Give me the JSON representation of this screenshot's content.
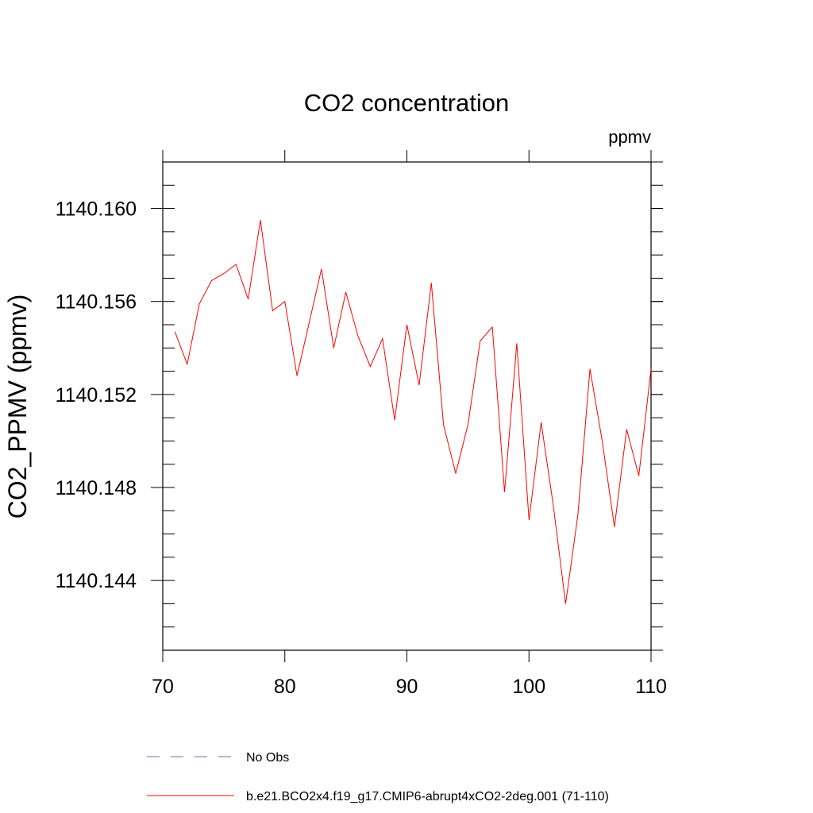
{
  "chart_data": {
    "type": "line",
    "title": "CO2 concentration",
    "units_label": "ppmv",
    "xlabel": "",
    "ylabel": "CO2_PPMV  (ppmv)",
    "xlim": [
      70,
      110
    ],
    "ylim": [
      1140.141,
      1140.162
    ],
    "x_ticks": [
      70,
      80,
      90,
      100,
      110
    ],
    "x_tick_labels": [
      "70",
      "80",
      "90",
      "100",
      "110"
    ],
    "y_ticks": [
      1140.144,
      1140.148,
      1140.152,
      1140.156,
      1140.16
    ],
    "y_tick_labels": [
      "1140.144",
      "1140.148",
      "1140.152",
      "1140.156",
      "1140.160"
    ],
    "legend": [
      {
        "label": "No Obs",
        "color": "#6a6ab8",
        "style": "dashed"
      },
      {
        "label": "b.e21.BCO2x4.f19_g17.CMIP6-abrupt4xCO2-2deg.001 (71-110)",
        "color": "#ff0000",
        "style": "solid"
      }
    ],
    "series": [
      {
        "name": "b.e21.BCO2x4.f19_g17.CMIP6-abrupt4xCO2-2deg.001 (71-110)",
        "color": "#ff0000",
        "x": [
          71,
          72,
          73,
          74,
          75,
          76,
          77,
          78,
          79,
          80,
          81,
          82,
          83,
          84,
          85,
          86,
          87,
          88,
          89,
          90,
          91,
          92,
          93,
          94,
          95,
          96,
          97,
          98,
          99,
          100,
          101,
          102,
          103,
          104,
          105,
          106,
          107,
          108,
          109,
          110
        ],
        "values": [
          1140.1547,
          1140.1533,
          1140.1559,
          1140.1569,
          1140.1572,
          1140.1576,
          1140.1561,
          1140.1595,
          1140.1556,
          1140.156,
          1140.1528,
          1140.1551,
          1140.1574,
          1140.154,
          1140.1564,
          1140.1545,
          1140.1532,
          1140.1544,
          1140.1509,
          1140.155,
          1140.1524,
          1140.1568,
          1140.1507,
          1140.1486,
          1140.1507,
          1140.1543,
          1140.1549,
          1140.1478,
          1140.1542,
          1140.1466,
          1140.1508,
          1140.1472,
          1140.143,
          1140.1468,
          1140.1531,
          1140.15,
          1140.1463,
          1140.1505,
          1140.1485,
          1140.1531
        ]
      }
    ]
  }
}
